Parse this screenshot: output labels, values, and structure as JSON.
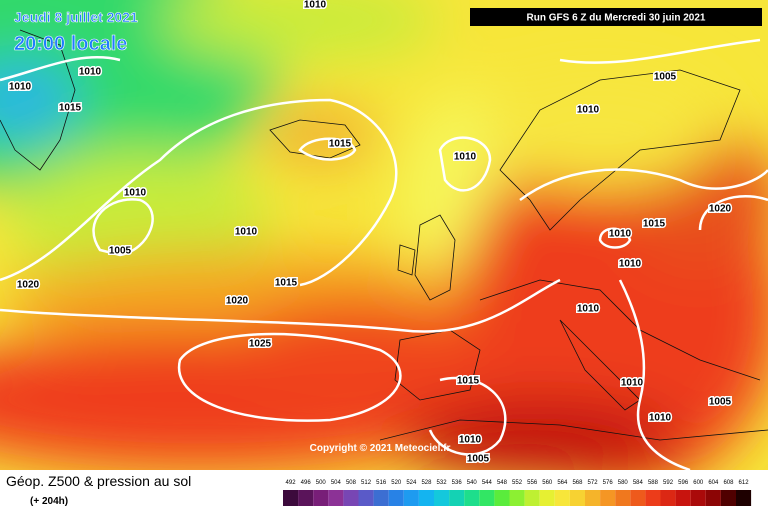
{
  "header": {
    "date": "Jeudi 8 juillet 2021",
    "time": "20:00 locale",
    "run": "Run GFS 6 Z du Mercredi 30 juin 2021"
  },
  "copyright": "Copyright © 2021 Meteociel.fr",
  "isobar_labels": [
    1010,
    1010,
    1010,
    1015,
    1005,
    1010,
    1015,
    1010,
    1010,
    1020,
    1015,
    1010,
    1010,
    1005,
    1010,
    1015,
    1020,
    1020,
    1010,
    1025,
    1015,
    1010,
    1005,
    1010,
    1010,
    1005
  ],
  "footer": {
    "title": "Géop. Z500 & pression au sol",
    "lead": "(+ 204h)"
  },
  "legend": {
    "labels": [
      "492",
      "496",
      "500",
      "504",
      "508",
      "512",
      "516",
      "520",
      "524",
      "528",
      "532",
      "536",
      "540",
      "544",
      "548",
      "552",
      "556",
      "560",
      "564",
      "568",
      "572",
      "576",
      "580",
      "584",
      "588",
      "592",
      "596",
      "600",
      "604",
      "608",
      "612"
    ],
    "colors": [
      "#3c0a3c",
      "#5a145a",
      "#781e78",
      "#8c3296",
      "#7846b4",
      "#5a5ac8",
      "#3c6ed2",
      "#2882e6",
      "#1e9bf0",
      "#14b4f0",
      "#14c8dc",
      "#14d2b4",
      "#1ede8c",
      "#32e664",
      "#5aec3c",
      "#8cf032",
      "#bef032",
      "#e6f032",
      "#f7e63a",
      "#f7d232",
      "#f5b42a",
      "#f59624",
      "#f0781e",
      "#ee5a1c",
      "#ec3c1a",
      "#dc2814",
      "#c8140e",
      "#aa0a0a",
      "#8c0505",
      "#500000",
      "#1e0000"
    ]
  }
}
